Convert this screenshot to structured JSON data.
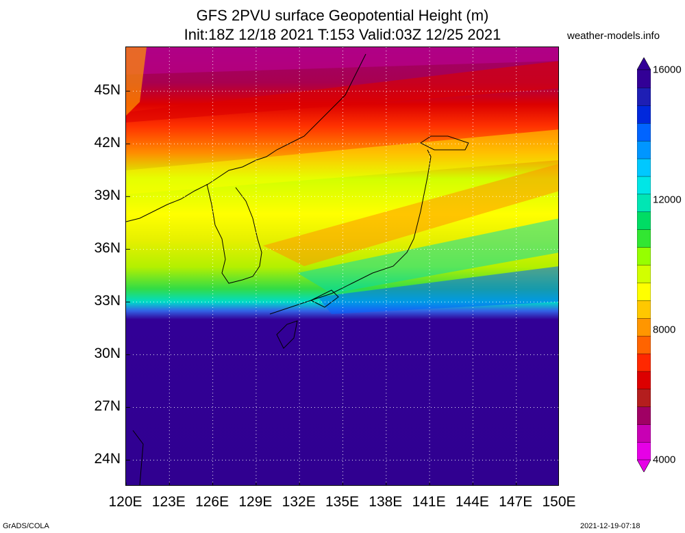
{
  "title_line1": "GFS 2PVU surface Geopotential Height (m)",
  "title_line2": "Init:18Z 12/18 2021 T:153 Valid:03Z 12/25 2021",
  "site": "weather-models.info",
  "footer_left": "GrADS/COLA",
  "footer_right": "2021-12-19-07:18",
  "map": {
    "lon_range": [
      120,
      150
    ],
    "lat_range": [
      22.5,
      47.5
    ],
    "lat_labels": [
      "45N",
      "42N",
      "39N",
      "36N",
      "33N",
      "30N",
      "27N",
      "24N"
    ],
    "lat_values": [
      45,
      42,
      39,
      36,
      33,
      30,
      27,
      24
    ],
    "lon_labels": [
      "120E",
      "123E",
      "126E",
      "129E",
      "132E",
      "135E",
      "138E",
      "141E",
      "144E",
      "147E",
      "150E"
    ],
    "lon_values": [
      120,
      123,
      126,
      129,
      132,
      135,
      138,
      141,
      144,
      147,
      150
    ],
    "gridlines": "dotted"
  },
  "colorbar": {
    "labels": [
      "16000",
      "12000",
      "8000",
      "4000"
    ],
    "values": [
      16000,
      12000,
      8000,
      4000
    ],
    "range": [
      4000,
      16000
    ],
    "colors": [
      "#e600e6",
      "#c800b4",
      "#a00064",
      "#b41e1e",
      "#dc0000",
      "#ff2800",
      "#ff6400",
      "#ff9600",
      "#ffc800",
      "#ffff00",
      "#d2ff00",
      "#96ff00",
      "#32e632",
      "#00dc64",
      "#00e6b4",
      "#00e6e6",
      "#00c8ff",
      "#0096ff",
      "#0064ff",
      "#0028dc",
      "#1e1eb4",
      "#320096"
    ]
  }
}
